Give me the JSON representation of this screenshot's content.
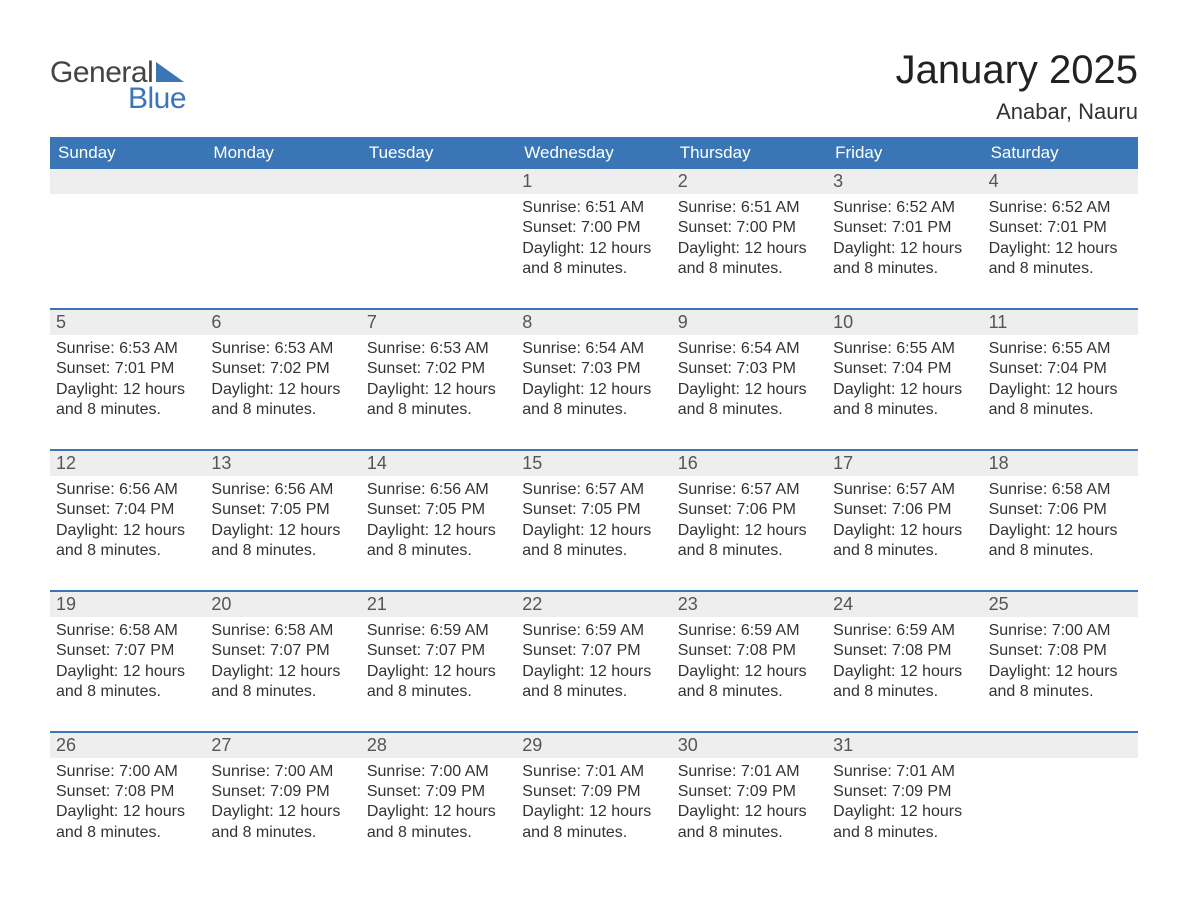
{
  "logo": {
    "general": "General",
    "blue": "Blue"
  },
  "title": "January 2025",
  "location": "Anabar, Nauru",
  "layout": {
    "columns": 7,
    "header_bg": "#3a76b6",
    "header_text": "#ffffff",
    "daynum_bg": "#eeeeee",
    "row_divider": "#3a76b6",
    "body_text": "#333333",
    "daynum_text": "#555555",
    "page_bg": "#ffffff",
    "title_fontsize": 40,
    "location_fontsize": 22,
    "weekday_fontsize": 17,
    "daynum_fontsize": 18,
    "detail_fontsize": 16
  },
  "weekdays": [
    "Sunday",
    "Monday",
    "Tuesday",
    "Wednesday",
    "Thursday",
    "Friday",
    "Saturday"
  ],
  "weeks": [
    [
      {
        "n": "",
        "sr": "",
        "ss": "",
        "dl": ""
      },
      {
        "n": "",
        "sr": "",
        "ss": "",
        "dl": ""
      },
      {
        "n": "",
        "sr": "",
        "ss": "",
        "dl": ""
      },
      {
        "n": "1",
        "sr": "Sunrise: 6:51 AM",
        "ss": "Sunset: 7:00 PM",
        "dl": "Daylight: 12 hours and 8 minutes."
      },
      {
        "n": "2",
        "sr": "Sunrise: 6:51 AM",
        "ss": "Sunset: 7:00 PM",
        "dl": "Daylight: 12 hours and 8 minutes."
      },
      {
        "n": "3",
        "sr": "Sunrise: 6:52 AM",
        "ss": "Sunset: 7:01 PM",
        "dl": "Daylight: 12 hours and 8 minutes."
      },
      {
        "n": "4",
        "sr": "Sunrise: 6:52 AM",
        "ss": "Sunset: 7:01 PM",
        "dl": "Daylight: 12 hours and 8 minutes."
      }
    ],
    [
      {
        "n": "5",
        "sr": "Sunrise: 6:53 AM",
        "ss": "Sunset: 7:01 PM",
        "dl": "Daylight: 12 hours and 8 minutes."
      },
      {
        "n": "6",
        "sr": "Sunrise: 6:53 AM",
        "ss": "Sunset: 7:02 PM",
        "dl": "Daylight: 12 hours and 8 minutes."
      },
      {
        "n": "7",
        "sr": "Sunrise: 6:53 AM",
        "ss": "Sunset: 7:02 PM",
        "dl": "Daylight: 12 hours and 8 minutes."
      },
      {
        "n": "8",
        "sr": "Sunrise: 6:54 AM",
        "ss": "Sunset: 7:03 PM",
        "dl": "Daylight: 12 hours and 8 minutes."
      },
      {
        "n": "9",
        "sr": "Sunrise: 6:54 AM",
        "ss": "Sunset: 7:03 PM",
        "dl": "Daylight: 12 hours and 8 minutes."
      },
      {
        "n": "10",
        "sr": "Sunrise: 6:55 AM",
        "ss": "Sunset: 7:04 PM",
        "dl": "Daylight: 12 hours and 8 minutes."
      },
      {
        "n": "11",
        "sr": "Sunrise: 6:55 AM",
        "ss": "Sunset: 7:04 PM",
        "dl": "Daylight: 12 hours and 8 minutes."
      }
    ],
    [
      {
        "n": "12",
        "sr": "Sunrise: 6:56 AM",
        "ss": "Sunset: 7:04 PM",
        "dl": "Daylight: 12 hours and 8 minutes."
      },
      {
        "n": "13",
        "sr": "Sunrise: 6:56 AM",
        "ss": "Sunset: 7:05 PM",
        "dl": "Daylight: 12 hours and 8 minutes."
      },
      {
        "n": "14",
        "sr": "Sunrise: 6:56 AM",
        "ss": "Sunset: 7:05 PM",
        "dl": "Daylight: 12 hours and 8 minutes."
      },
      {
        "n": "15",
        "sr": "Sunrise: 6:57 AM",
        "ss": "Sunset: 7:05 PM",
        "dl": "Daylight: 12 hours and 8 minutes."
      },
      {
        "n": "16",
        "sr": "Sunrise: 6:57 AM",
        "ss": "Sunset: 7:06 PM",
        "dl": "Daylight: 12 hours and 8 minutes."
      },
      {
        "n": "17",
        "sr": "Sunrise: 6:57 AM",
        "ss": "Sunset: 7:06 PM",
        "dl": "Daylight: 12 hours and 8 minutes."
      },
      {
        "n": "18",
        "sr": "Sunrise: 6:58 AM",
        "ss": "Sunset: 7:06 PM",
        "dl": "Daylight: 12 hours and 8 minutes."
      }
    ],
    [
      {
        "n": "19",
        "sr": "Sunrise: 6:58 AM",
        "ss": "Sunset: 7:07 PM",
        "dl": "Daylight: 12 hours and 8 minutes."
      },
      {
        "n": "20",
        "sr": "Sunrise: 6:58 AM",
        "ss": "Sunset: 7:07 PM",
        "dl": "Daylight: 12 hours and 8 minutes."
      },
      {
        "n": "21",
        "sr": "Sunrise: 6:59 AM",
        "ss": "Sunset: 7:07 PM",
        "dl": "Daylight: 12 hours and 8 minutes."
      },
      {
        "n": "22",
        "sr": "Sunrise: 6:59 AM",
        "ss": "Sunset: 7:07 PM",
        "dl": "Daylight: 12 hours and 8 minutes."
      },
      {
        "n": "23",
        "sr": "Sunrise: 6:59 AM",
        "ss": "Sunset: 7:08 PM",
        "dl": "Daylight: 12 hours and 8 minutes."
      },
      {
        "n": "24",
        "sr": "Sunrise: 6:59 AM",
        "ss": "Sunset: 7:08 PM",
        "dl": "Daylight: 12 hours and 8 minutes."
      },
      {
        "n": "25",
        "sr": "Sunrise: 7:00 AM",
        "ss": "Sunset: 7:08 PM",
        "dl": "Daylight: 12 hours and 8 minutes."
      }
    ],
    [
      {
        "n": "26",
        "sr": "Sunrise: 7:00 AM",
        "ss": "Sunset: 7:08 PM",
        "dl": "Daylight: 12 hours and 8 minutes."
      },
      {
        "n": "27",
        "sr": "Sunrise: 7:00 AM",
        "ss": "Sunset: 7:09 PM",
        "dl": "Daylight: 12 hours and 8 minutes."
      },
      {
        "n": "28",
        "sr": "Sunrise: 7:00 AM",
        "ss": "Sunset: 7:09 PM",
        "dl": "Daylight: 12 hours and 8 minutes."
      },
      {
        "n": "29",
        "sr": "Sunrise: 7:01 AM",
        "ss": "Sunset: 7:09 PM",
        "dl": "Daylight: 12 hours and 8 minutes."
      },
      {
        "n": "30",
        "sr": "Sunrise: 7:01 AM",
        "ss": "Sunset: 7:09 PM",
        "dl": "Daylight: 12 hours and 8 minutes."
      },
      {
        "n": "31",
        "sr": "Sunrise: 7:01 AM",
        "ss": "Sunset: 7:09 PM",
        "dl": "Daylight: 12 hours and 8 minutes."
      },
      {
        "n": "",
        "sr": "",
        "ss": "",
        "dl": ""
      }
    ]
  ]
}
